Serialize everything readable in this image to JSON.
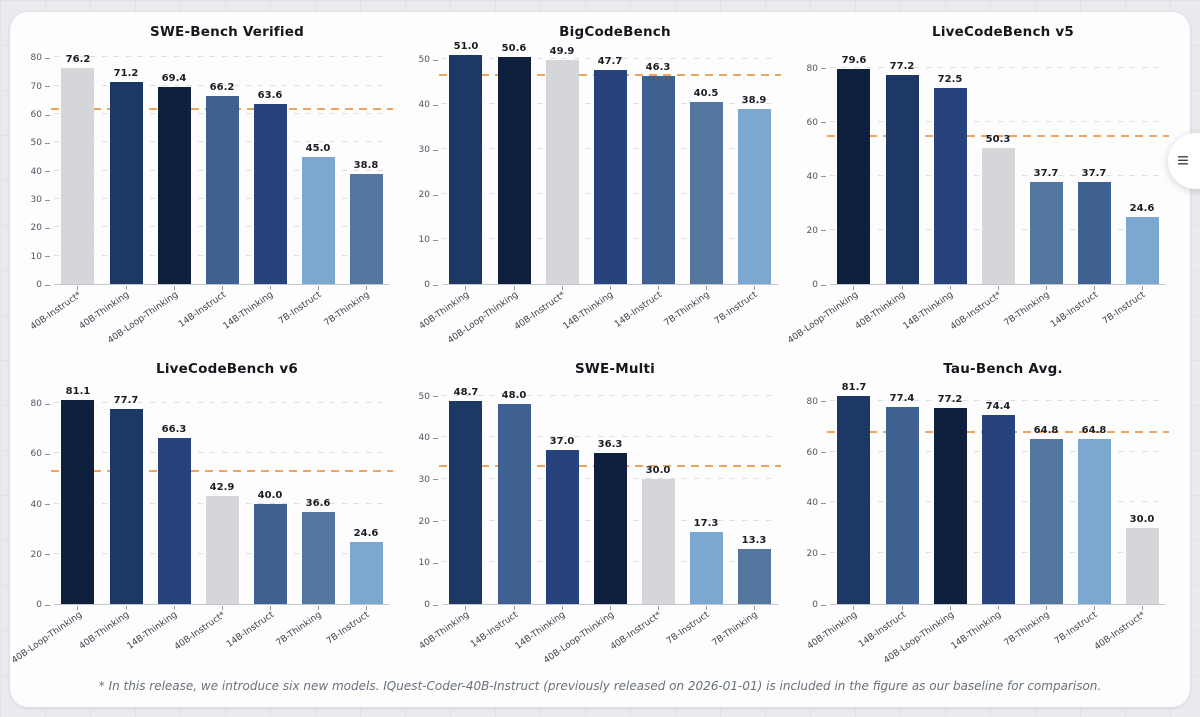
{
  "page": {
    "background_color": "#e9ebee",
    "card_color": "#fdfdfe"
  },
  "menu_button": {
    "icon": "hamburger-menu",
    "glyph": "≡"
  },
  "footnote": "* In this release, we introduce six new models. IQuest-Coder-40B-Instruct (previously released on 2026-01-01) is included in the figure as our baseline for comparison.",
  "model_colors": {
    "40B-Instruct*": "#d4d6d9",
    "40B-Thinking": "#1d3865",
    "40B-Loop-Thinking": "#0f1f3e",
    "14B-Instruct": "#3f6191",
    "14B-Thinking": "#26437e",
    "7B-Instruct": "#7ba7d1",
    "7B-Thinking": "#54779f"
  },
  "accent_colors": {
    "mean_line": "#eda55f"
  },
  "chart_data": [
    {
      "type": "bar",
      "title": "SWE-Bench Verified",
      "categories": [
        "40B-Instruct*",
        "40B-Thinking",
        "40B-Loop-Thinking",
        "14B-Instruct",
        "14B-Thinking",
        "7B-Instruct",
        "7B-Thinking"
      ],
      "values": [
        76.2,
        71.2,
        69.4,
        66.2,
        63.6,
        45.0,
        38.8
      ],
      "yticks": [
        0,
        10,
        20,
        30,
        40,
        50,
        60,
        70,
        80
      ],
      "ylim": [
        0,
        84
      ],
      "mean_line": 61.5,
      "grid": true,
      "legend": "none"
    },
    {
      "type": "bar",
      "title": "BigCodeBench",
      "categories": [
        "40B-Thinking",
        "40B-Loop-Thinking",
        "40B-Instruct*",
        "14B-Thinking",
        "14B-Instruct",
        "7B-Thinking",
        "7B-Instruct"
      ],
      "values": [
        51.0,
        50.6,
        49.9,
        47.7,
        46.3,
        40.5,
        38.9
      ],
      "yticks": [
        0,
        10,
        20,
        30,
        40,
        50
      ],
      "ylim": [
        0,
        53
      ],
      "mean_line": 46.4,
      "grid": true,
      "legend": "none"
    },
    {
      "type": "bar",
      "title": "LiveCodeBench v5",
      "categories": [
        "40B-Loop-Thinking",
        "40B-Thinking",
        "14B-Thinking",
        "40B-Instruct*",
        "7B-Thinking",
        "14B-Instruct",
        "7B-Instruct"
      ],
      "values": [
        79.6,
        77.2,
        72.5,
        50.3,
        37.7,
        37.7,
        24.6
      ],
      "yticks": [
        0,
        20,
        40,
        60,
        80
      ],
      "ylim": [
        0,
        88
      ],
      "mean_line": 54.2,
      "grid": true,
      "legend": "none"
    },
    {
      "type": "bar",
      "title": "LiveCodeBench v6",
      "categories": [
        "40B-Loop-Thinking",
        "40B-Thinking",
        "14B-Thinking",
        "40B-Instruct*",
        "14B-Instruct",
        "7B-Thinking",
        "7B-Instruct"
      ],
      "values": [
        81.1,
        77.7,
        66.3,
        42.9,
        40.0,
        36.6,
        24.6
      ],
      "yticks": [
        0,
        20,
        40,
        60,
        80
      ],
      "ylim": [
        0,
        88
      ],
      "mean_line": 52.7,
      "grid": true,
      "legend": "none"
    },
    {
      "type": "bar",
      "title": "SWE-Multi",
      "categories": [
        "40B-Thinking",
        "14B-Instruct",
        "14B-Thinking",
        "40B-Loop-Thinking",
        "40B-Instruct*",
        "7B-Instruct",
        "7B-Thinking"
      ],
      "values": [
        48.7,
        48.0,
        37.0,
        36.3,
        30.0,
        17.3,
        13.3
      ],
      "yticks": [
        0,
        10,
        20,
        30,
        40,
        50
      ],
      "ylim": [
        0,
        53
      ],
      "mean_line": 32.9,
      "grid": true,
      "legend": "none"
    },
    {
      "type": "bar",
      "title": "Tau-Bench Avg.",
      "categories": [
        "40B-Thinking",
        "14B-Instruct",
        "40B-Loop-Thinking",
        "14B-Thinking",
        "7B-Thinking",
        "7B-Instruct",
        "40B-Instruct*"
      ],
      "values": [
        81.7,
        77.4,
        77.2,
        74.4,
        64.8,
        64.8,
        30.0
      ],
      "yticks": [
        0,
        20,
        40,
        60,
        80
      ],
      "ylim": [
        0,
        87
      ],
      "mean_line": 67.2,
      "grid": true,
      "legend": "none"
    }
  ]
}
